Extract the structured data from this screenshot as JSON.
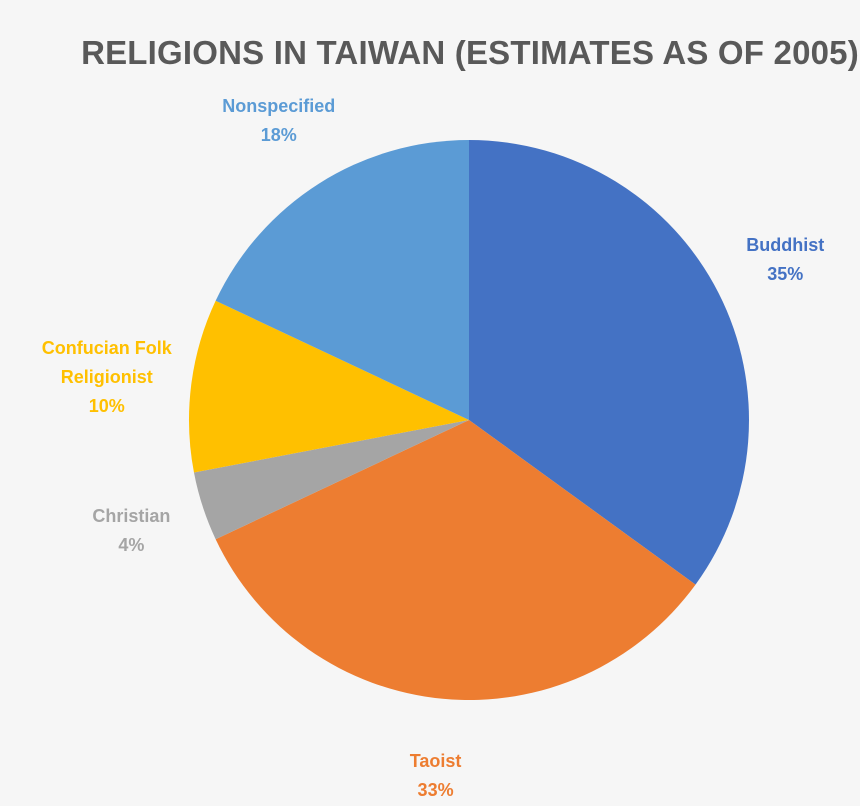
{
  "chart_data": {
    "type": "pie",
    "title": "RELIGIONS IN TAIWAN (ESTIMATES AS OF 2005)",
    "categories": [
      "Buddhist",
      "Taoist",
      "Christian",
      "Confucian Folk Religionist",
      "Nonspecified"
    ],
    "values": [
      35,
      33,
      4,
      10,
      18
    ],
    "value_labels": [
      "35%",
      "33%",
      "4%",
      "10%",
      "18%"
    ],
    "label_lines": [
      [
        "Buddhist"
      ],
      [
        "Taoist"
      ],
      [
        "Christian"
      ],
      [
        "Confucian Folk",
        "Religionist"
      ],
      [
        "Nonspecified"
      ]
    ],
    "colors": [
      "#4472c4",
      "#ed7d31",
      "#a5a5a5",
      "#ffc000",
      "#5b9bd5"
    ],
    "legend": "none"
  }
}
